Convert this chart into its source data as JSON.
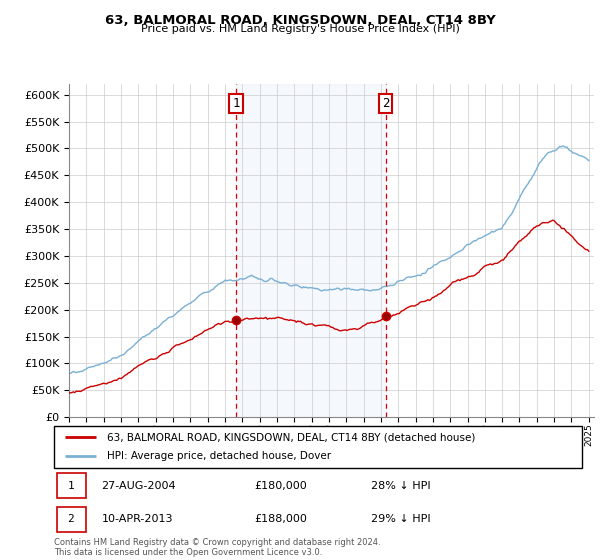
{
  "title": "63, BALMORAL ROAD, KINGSDOWN, DEAL, CT14 8BY",
  "subtitle": "Price paid vs. HM Land Registry's House Price Index (HPI)",
  "legend_line1": "63, BALMORAL ROAD, KINGSDOWN, DEAL, CT14 8BY (detached house)",
  "legend_line2": "HPI: Average price, detached house, Dover",
  "sale1_date": "27-AUG-2004",
  "sale1_price": "£180,000",
  "sale1_hpi": "28% ↓ HPI",
  "sale1_year": 2004.65,
  "sale1_value": 180000,
  "sale2_date": "10-APR-2013",
  "sale2_price": "£188,000",
  "sale2_hpi": "29% ↓ HPI",
  "sale2_year": 2013.27,
  "sale2_value": 188000,
  "footer": "Contains HM Land Registry data © Crown copyright and database right 2024.\nThis data is licensed under the Open Government Licence v3.0.",
  "ylim": [
    0,
    620000
  ],
  "yticks": [
    0,
    50000,
    100000,
    150000,
    200000,
    250000,
    300000,
    350000,
    400000,
    450000,
    500000,
    550000,
    600000
  ],
  "red_color": "#cc0000",
  "blue_color": "#7ab0d4",
  "shade_color": "#ddeeff",
  "vline_color": "#dd0000",
  "box_color": "#cc0000"
}
